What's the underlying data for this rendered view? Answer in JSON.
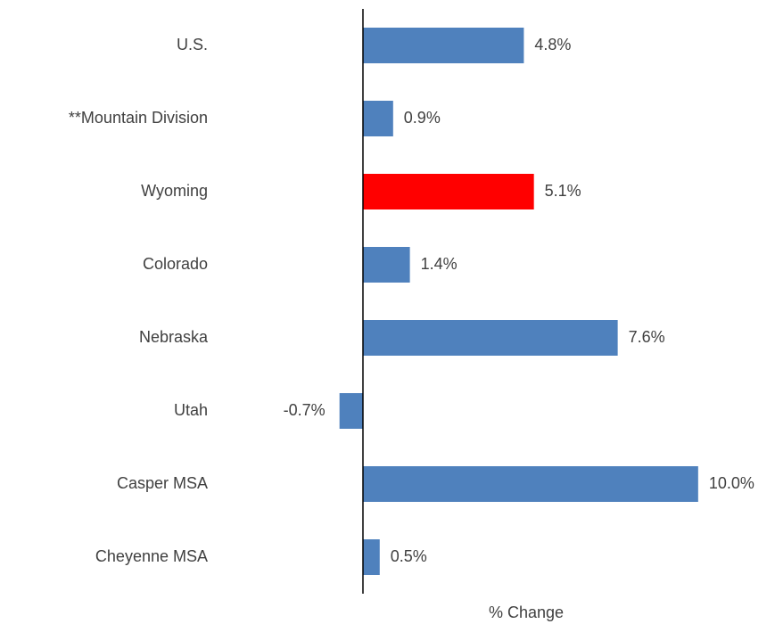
{
  "chart_data": {
    "type": "bar",
    "orientation": "horizontal",
    "categories": [
      "U.S.",
      "**Mountain Division",
      "Wyoming",
      "Colorado",
      "Nebraska",
      "Utah",
      "Casper MSA",
      "Cheyenne MSA"
    ],
    "values": [
      4.8,
      0.9,
      5.1,
      1.4,
      7.6,
      -0.7,
      10.0,
      0.5
    ],
    "value_labels": [
      "4.8%",
      "0.9%",
      "5.1%",
      "1.4%",
      "7.6%",
      "-0.7%",
      "10.0%",
      "0.5%"
    ],
    "colors": [
      "#4f81bd",
      "#4f81bd",
      "#ff0000",
      "#4f81bd",
      "#4f81bd",
      "#4f81bd",
      "#4f81bd",
      "#4f81bd"
    ],
    "xlabel": "% Change",
    "xlim": [
      -1,
      12
    ]
  }
}
